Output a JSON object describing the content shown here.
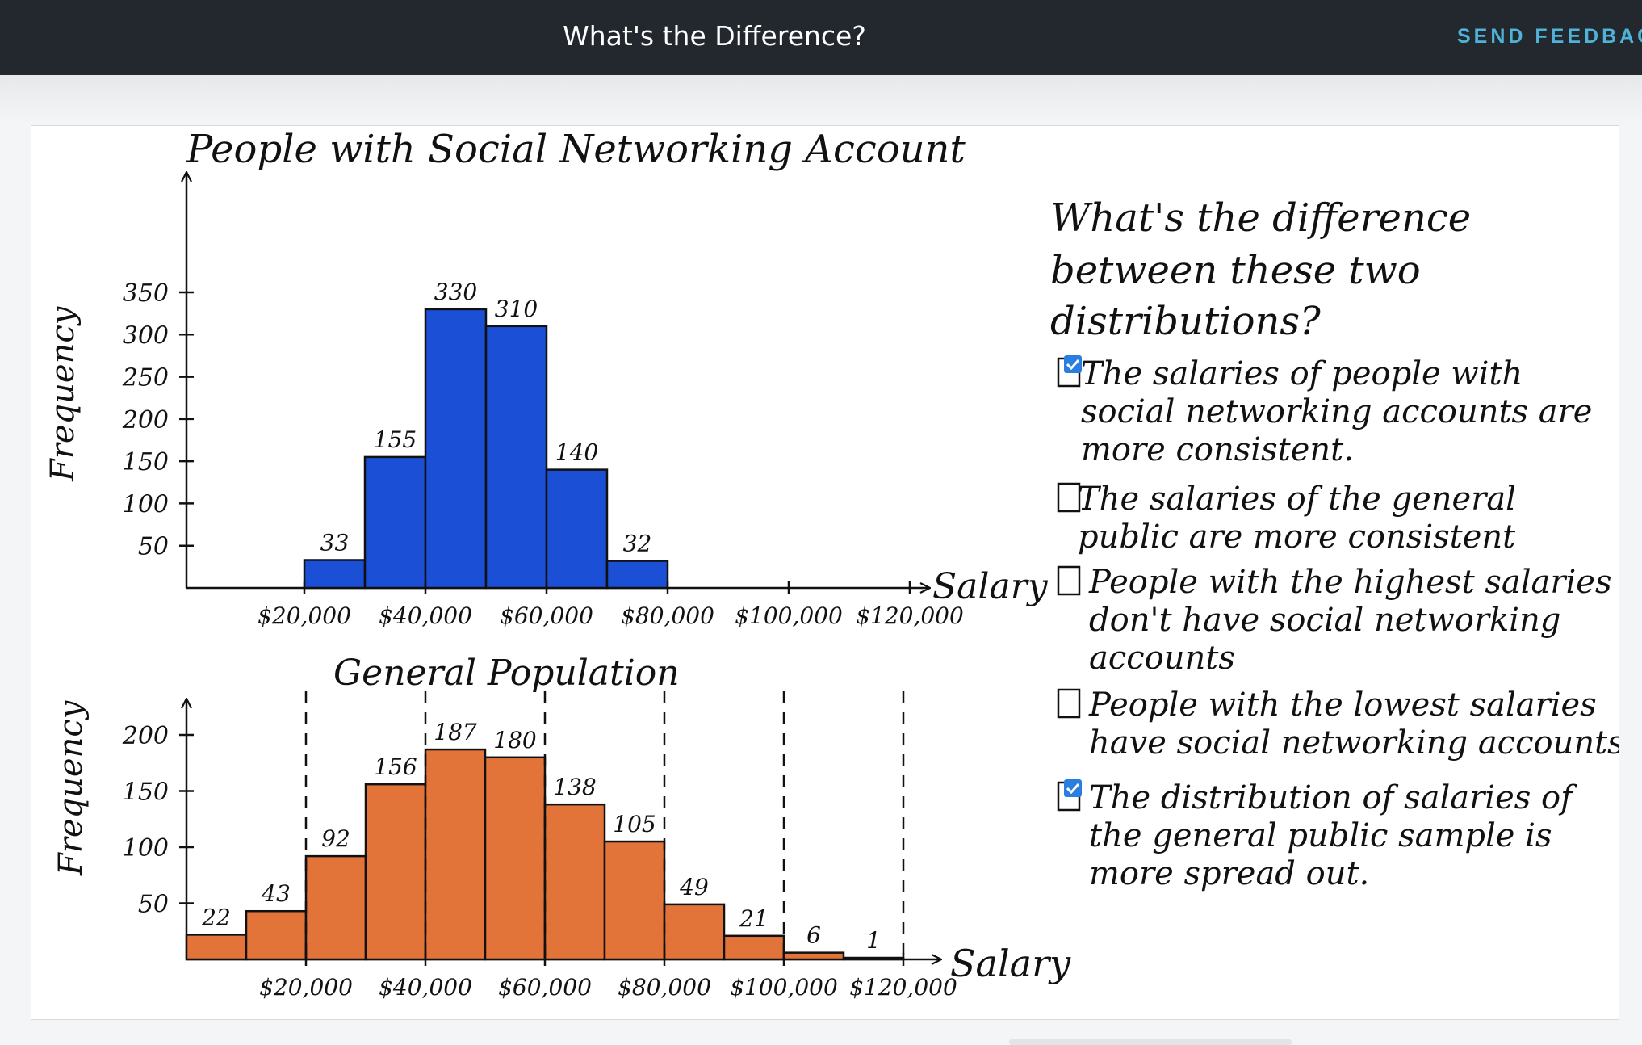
{
  "header": {
    "title": "What's the Difference?",
    "feedback_label": "SEND FEEDBAC"
  },
  "colors": {
    "header_bg": "#22282d",
    "feedback": "#4fb3d9",
    "bar_blue": "#1a4fd6",
    "bar_orange": "#e2743a"
  },
  "chart_data": [
    {
      "type": "bar",
      "title": "People with Social Networking Account",
      "ylabel": "Frequency",
      "xlabel": "Salary",
      "ylim": [
        0,
        350
      ],
      "y_ticks": [
        "350",
        "300",
        "250",
        "200",
        "150",
        "100",
        "50"
      ],
      "x_ticks": [
        "$20,000",
        "$40,000",
        "$60,000",
        "$80,000",
        "$100,000",
        "$120,000"
      ],
      "bins": [
        [
          20000,
          30000
        ],
        [
          30000,
          40000
        ],
        [
          40000,
          50000
        ],
        [
          50000,
          60000
        ],
        [
          60000,
          70000
        ],
        [
          70000,
          80000
        ]
      ],
      "values": [
        33,
        155,
        330,
        310,
        140,
        32
      ],
      "value_labels": [
        "33",
        "155",
        "330",
        "310",
        "140",
        "32"
      ],
      "color": "#1a4fd6"
    },
    {
      "type": "bar",
      "title": "General Population",
      "ylabel": "Frequency",
      "xlabel": "Salary",
      "ylim": [
        0,
        200
      ],
      "y_ticks": [
        "200",
        "150",
        "100",
        "50"
      ],
      "x_ticks": [
        "$20,000",
        "$40,000",
        "$60,000",
        "$80,000",
        "$100,000",
        "$120,000"
      ],
      "bins": [
        [
          0,
          10000
        ],
        [
          10000,
          20000
        ],
        [
          20000,
          30000
        ],
        [
          30000,
          40000
        ],
        [
          40000,
          50000
        ],
        [
          50000,
          60000
        ],
        [
          60000,
          70000
        ],
        [
          70000,
          80000
        ],
        [
          80000,
          90000
        ],
        [
          90000,
          100000
        ],
        [
          100000,
          110000
        ],
        [
          110000,
          120000
        ]
      ],
      "values": [
        22,
        43,
        92,
        156,
        187,
        180,
        138,
        105,
        49,
        21,
        6,
        1
      ],
      "value_labels": [
        "22",
        "43",
        "92",
        "156",
        "187",
        "180",
        "138",
        "105",
        "49",
        "21",
        "6",
        "1"
      ],
      "color": "#e2743a"
    }
  ],
  "question": {
    "lines": [
      "What's the difference",
      "between these two",
      "distributions?"
    ],
    "options": [
      {
        "lines": [
          "The salaries of people with",
          "social networking accounts are",
          "more consistent."
        ],
        "checked": true
      },
      {
        "lines": [
          "The salaries of the general",
          "public are more consistent"
        ],
        "checked": false
      },
      {
        "lines": [
          "People with the highest salaries",
          "don't have social networking",
          "accounts"
        ],
        "checked": false
      },
      {
        "lines": [
          "People with the lowest salaries",
          "have social networking accounts"
        ],
        "checked": false
      },
      {
        "lines": [
          "The distribution of salaries of",
          "the general public sample is",
          "more spread out."
        ],
        "checked": true
      }
    ]
  }
}
